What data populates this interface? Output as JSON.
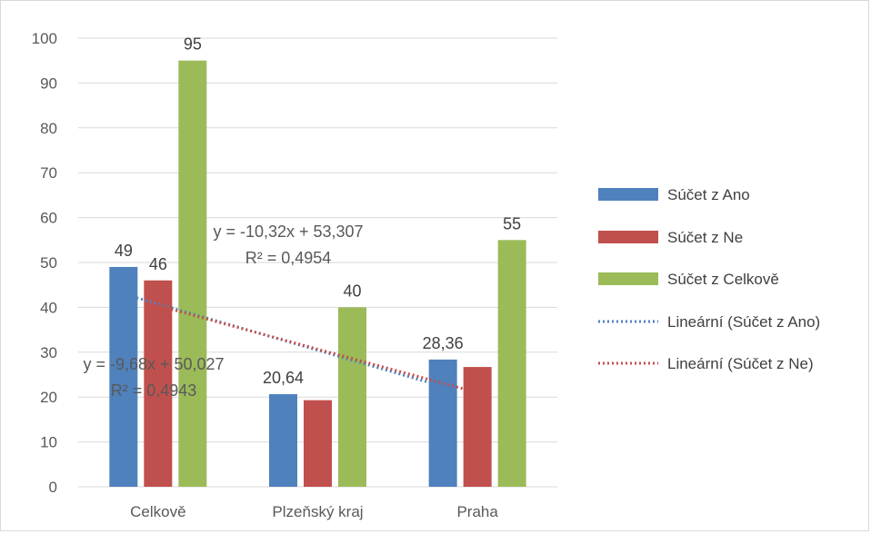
{
  "chart_data": {
    "type": "bar",
    "categories": [
      "Celkově",
      "Plzeňský kraj",
      "Praha"
    ],
    "ylim": [
      0,
      100
    ],
    "yticks": [
      0,
      10,
      20,
      30,
      40,
      50,
      60,
      70,
      80,
      90,
      100
    ],
    "grid": true,
    "legend_position": "right",
    "series": [
      {
        "name": "Súčet z Ano",
        "values": [
          49,
          20.64,
          28.36
        ],
        "labels": [
          "49",
          "20,64",
          "28,36"
        ],
        "color": "#4f81bd"
      },
      {
        "name": "Súčet z Ne",
        "values": [
          46,
          19.3,
          26.7
        ],
        "labels": [
          "46",
          "",
          ""
        ],
        "color": "#c0504d"
      },
      {
        "name": "Súčet z Celkově",
        "values": [
          95,
          40,
          55
        ],
        "labels": [
          "95",
          "40",
          "55"
        ],
        "color": "#9bbb59"
      }
    ],
    "trendlines": [
      {
        "name": "Lineární (Súčet z Ano)",
        "series": "Súčet z Ano",
        "slope": -10.32,
        "intercept": 53.307,
        "equation": "y = -10,32x + 53,307",
        "r2": "R² = 0,4954",
        "color": "#4f81bd"
      },
      {
        "name": "Lineární (Súčet z Ne)",
        "series": "Súčet z Ne",
        "slope": -9.68,
        "intercept": 50.027,
        "equation": "y = -9,68x + 50,027",
        "r2": "R² = 0,4943",
        "color": "#c0504d"
      }
    ]
  }
}
